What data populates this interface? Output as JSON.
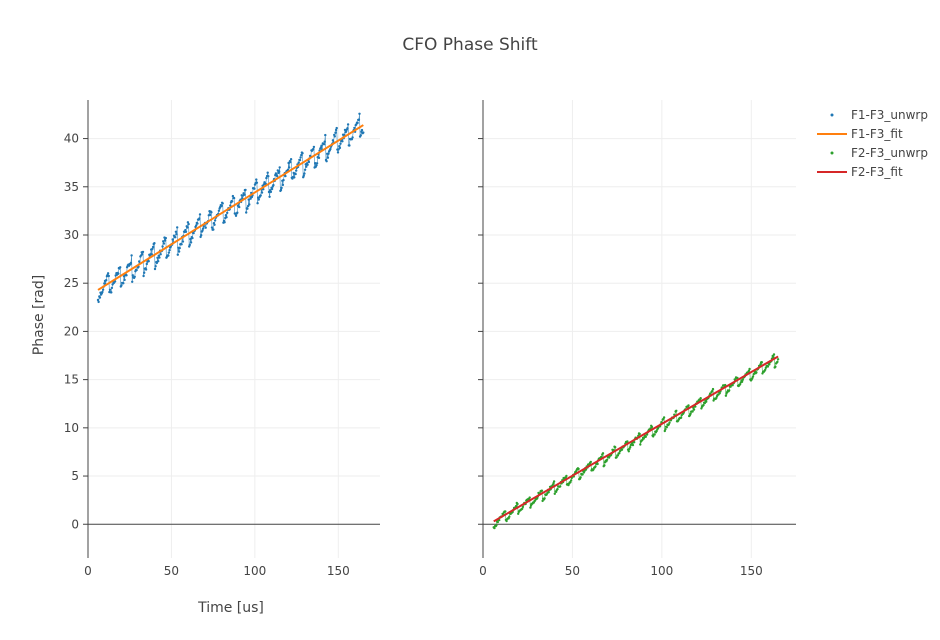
{
  "chart_data": {
    "type": "scatter",
    "title": "CFO Phase Shift",
    "xlabel": "Time [us]",
    "ylabel": "Phase [rad]",
    "grid": true,
    "legend_position": "top-right",
    "subplots": [
      {
        "xlim": [
          0,
          175
        ],
        "ylim": [
          -3.5,
          44
        ],
        "xticks": [
          0,
          50,
          100,
          150
        ],
        "yticks": [
          0,
          5,
          10,
          15,
          20,
          25,
          30,
          35,
          40
        ],
        "series": [
          {
            "name": "F1-F3_unwrp",
            "mode": "markers",
            "color": "#1f77b4",
            "x_range": [
              6,
              165
            ],
            "trend_start": 24.3,
            "trend_end": 41.4,
            "spread": 2.4
          },
          {
            "name": "F1-F3_fit",
            "mode": "line",
            "color": "#ff7f0e",
            "x": [
              6,
              165
            ],
            "y": [
              24.3,
              41.4
            ]
          }
        ]
      },
      {
        "xlim": [
          0,
          175
        ],
        "ylim": [
          -3.5,
          44
        ],
        "xticks": [
          0,
          50,
          100,
          150
        ],
        "yticks": [
          0,
          5,
          10,
          15,
          20,
          25,
          30,
          35,
          40
        ],
        "series": [
          {
            "name": "F2-F3_unwrp",
            "mode": "markers",
            "color": "#2ca02c",
            "x_range": [
              6,
              165
            ],
            "trend_start": 0.2,
            "trend_end": 17.2,
            "spread": 1.2
          },
          {
            "name": "F2-F3_fit",
            "mode": "line",
            "color": "#d62728",
            "x": [
              6,
              165
            ],
            "y": [
              0.3,
              17.4
            ]
          }
        ]
      }
    ]
  }
}
